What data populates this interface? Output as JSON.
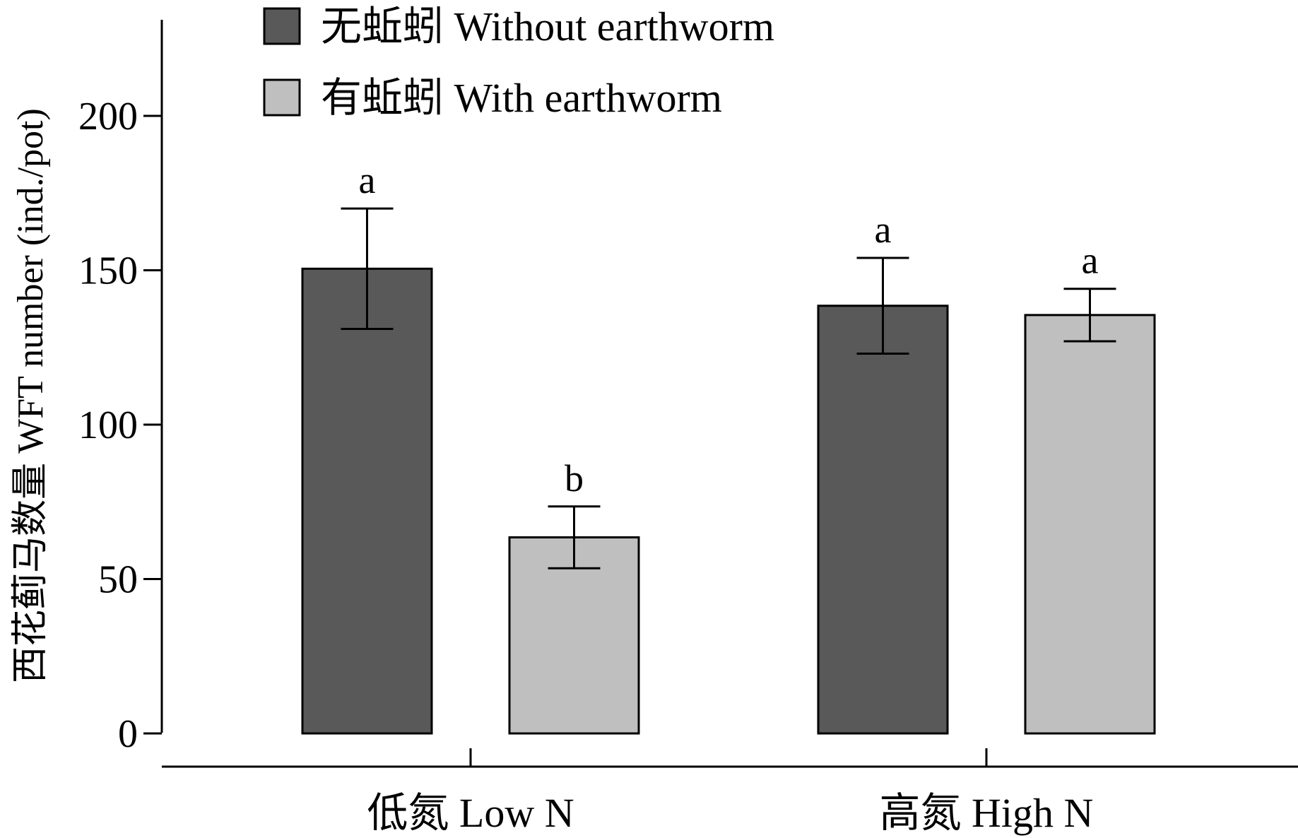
{
  "chart_data": {
    "type": "bar",
    "title": "",
    "xlabel": "",
    "ylabel": "西花蓟马数量 WFT number (ind./pot)",
    "ylim": [
      0,
      230
    ],
    "yticks": [
      0,
      50,
      100,
      150,
      200
    ],
    "categories": [
      "低氮 Low N",
      "高氮 High N"
    ],
    "series": [
      {
        "name": "无蚯蚓 Without earthworm",
        "color": "#595959",
        "values": [
          150.5,
          138.5
        ],
        "errors": [
          19.5,
          15.5
        ],
        "significance": [
          "a",
          "a"
        ]
      },
      {
        "name": "有蚯蚓 With earthworm",
        "color": "#bfbfbf",
        "values": [
          63.5,
          135.5
        ],
        "errors": [
          10,
          8.5
        ],
        "significance": [
          "b",
          "a"
        ]
      }
    ],
    "legend": "top-left",
    "grid": false
  }
}
